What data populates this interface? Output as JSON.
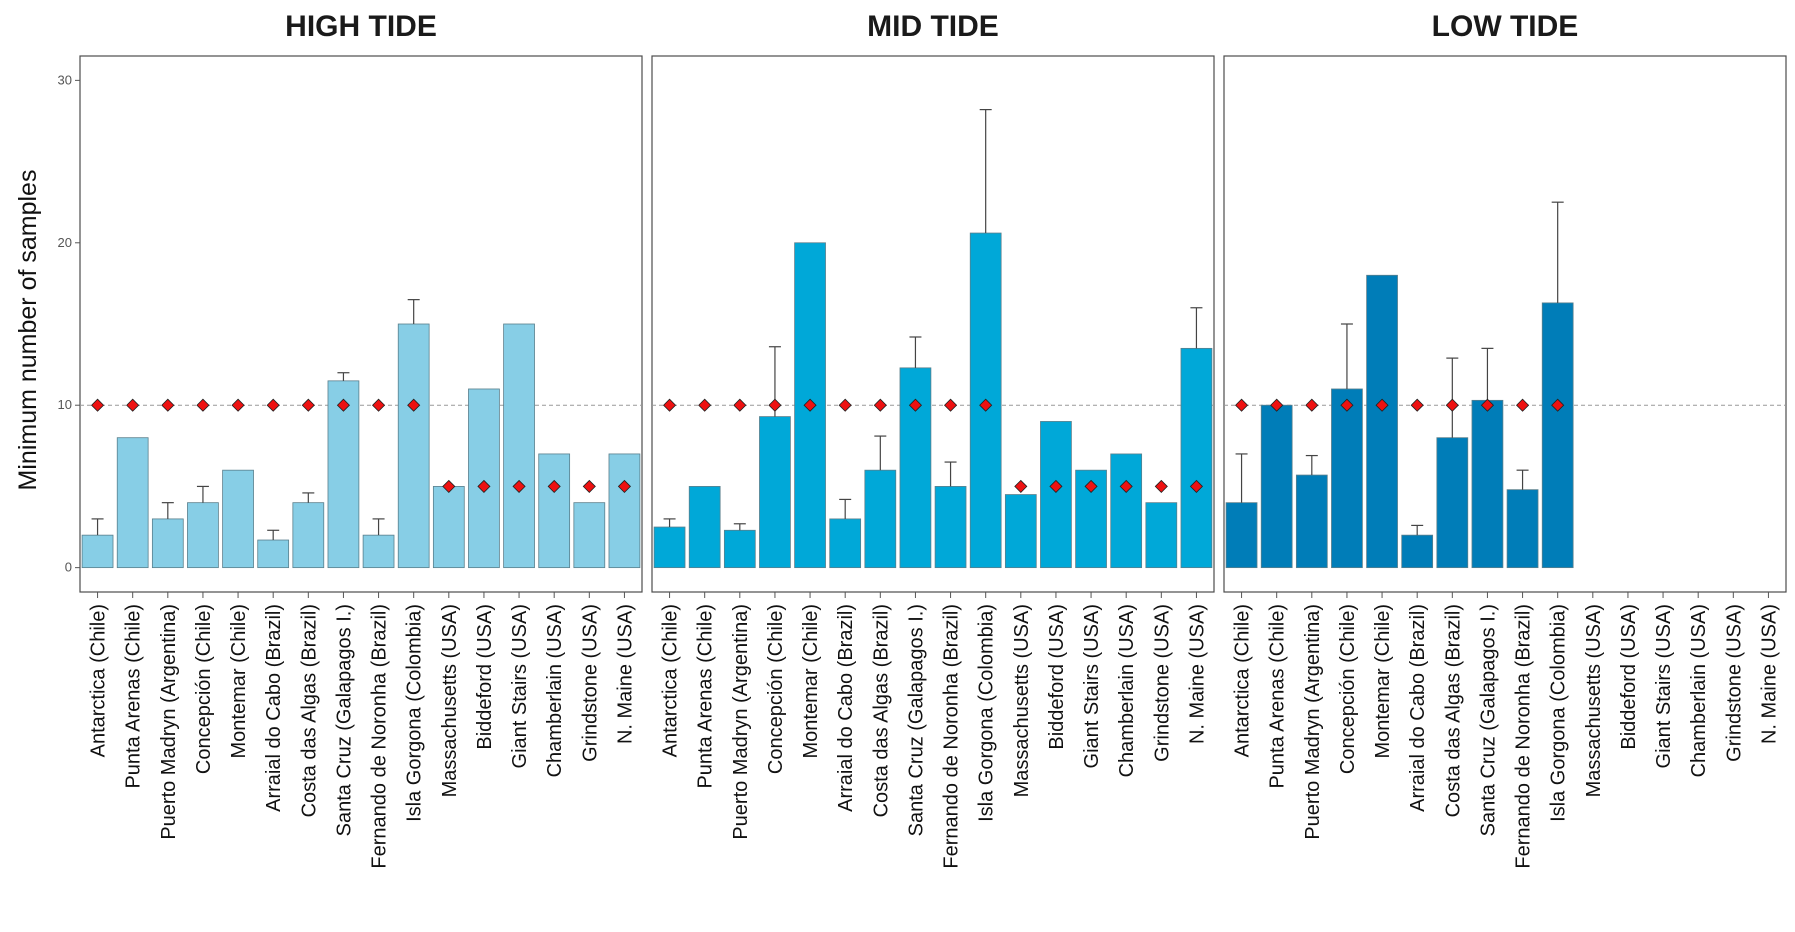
{
  "chart_data": {
    "type": "bar",
    "ylabel": "Minimum number of samples",
    "ylim": [
      -1.5,
      31.5
    ],
    "yticks": [
      0,
      10,
      20,
      30
    ],
    "reference_line": 10,
    "categories": [
      "Antarctica  (Chile)",
      "Punta Arenas (Chile)",
      "Puerto Madryn (Argentina)",
      "Concepción (Chile)",
      "Montemar (Chile)",
      "Arraial do Cabo (Brazil)",
      "Costa das Algas (Brazil)",
      "Santa Cruz (Galapagos I.)",
      "Fernando de Noronha (Brazil)",
      "Isla Gorgona (Colombia)",
      "Massachusetts (USA)",
      "Biddeford (USA)",
      "Giant Stairs (USA)",
      "Chamberlain (USA)",
      "Grindstone (USA)",
      "N. Maine (USA)"
    ],
    "panels": [
      {
        "title": "HIGH TIDE",
        "color": "#87CEE6",
        "values": [
          2,
          8,
          3,
          4,
          6,
          1.7,
          4,
          11.5,
          2,
          15,
          5,
          11,
          15,
          7,
          4,
          7
        ],
        "error_upper": [
          3,
          null,
          4,
          5,
          null,
          2.3,
          4.6,
          12,
          3,
          16.5,
          null,
          null,
          null,
          null,
          null,
          null
        ],
        "markers": [
          10,
          10,
          10,
          10,
          10,
          10,
          10,
          10,
          10,
          10,
          5,
          5,
          5,
          5,
          5,
          5
        ]
      },
      {
        "title": "MID TIDE",
        "color": "#00A8D8",
        "values": [
          2.5,
          5,
          2.3,
          9.3,
          20,
          3,
          6,
          12.3,
          5,
          20.6,
          4.5,
          9,
          6,
          7,
          4,
          13.5
        ],
        "error_upper": [
          3,
          null,
          2.7,
          13.6,
          null,
          4.2,
          8.1,
          14.2,
          6.5,
          28.2,
          null,
          null,
          null,
          null,
          null,
          16
        ],
        "markers": [
          10,
          10,
          10,
          10,
          10,
          10,
          10,
          10,
          10,
          10,
          5,
          5,
          5,
          5,
          5,
          5
        ]
      },
      {
        "title": "LOW TIDE",
        "color": "#007DB8",
        "values": [
          4,
          10,
          5.7,
          11,
          18,
          2,
          8,
          10.3,
          4.8,
          16.3,
          null,
          null,
          null,
          null,
          null,
          null
        ],
        "error_upper": [
          7,
          null,
          6.9,
          15,
          null,
          2.6,
          12.9,
          13.5,
          6,
          22.5,
          null,
          null,
          null,
          null,
          null,
          null
        ],
        "markers": [
          10,
          10,
          10,
          10,
          10,
          10,
          10,
          10,
          10,
          10,
          null,
          null,
          null,
          null,
          null,
          null
        ]
      }
    ]
  }
}
